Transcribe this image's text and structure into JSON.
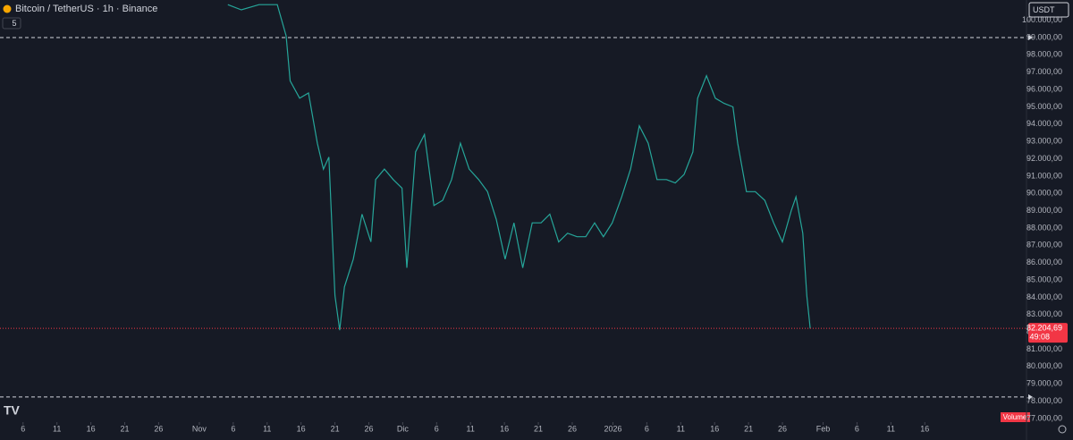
{
  "chart_data": {
    "type": "line",
    "title": "Bitcoin / TetherUS · 1h · Binance",
    "interval_badge": "5",
    "currency": "USDT",
    "volume_label": "Volume",
    "x": [
      35.2,
      37.2,
      39.8,
      42.5,
      43.8,
      44.4,
      45.8,
      47.1,
      48.4,
      49.3,
      50.1,
      51.0,
      51.7,
      52.4,
      53.7,
      55.0,
      56.3,
      57.0,
      58.3,
      59.6,
      60.9,
      61.6,
      62.3,
      62.9,
      64.2,
      65.6,
      66.9,
      68.2,
      69.5,
      70.8,
      72.2,
      73.5,
      74.8,
      76.1,
      77.4,
      78.7,
      80.1,
      81.4,
      82.7,
      84.0,
      85.3,
      86.7,
      88.0,
      89.3,
      90.6,
      91.9,
      93.3,
      94.6,
      95.9,
      97.2,
      98.5,
      99.9,
      101.2,
      102.5,
      103.8,
      104.5,
      105.8,
      107.1,
      108.4,
      109.7,
      110.4,
      111.7,
      113.0,
      114.4,
      115.7,
      117.0,
      118.3,
      119.0,
      120.0,
      120.6,
      121.1
    ],
    "series": [
      {
        "color": "#26a69a",
        "values": [
          100900,
          100600,
          100900,
          100900,
          99100,
          96500,
          95500,
          95800,
          92900,
          91400,
          92100,
          84100,
          82100,
          84600,
          86200,
          88800,
          87200,
          90800,
          91400,
          90800,
          90300,
          85700,
          89300,
          92400,
          93400,
          89300,
          89600,
          90800,
          92900,
          91400,
          90800,
          90100,
          88500,
          86200,
          88300,
          85700,
          88300,
          88300,
          88800,
          87200,
          87700,
          87500,
          87500,
          88300,
          87500,
          88300,
          89800,
          91400,
          93900,
          92900,
          90800,
          90800,
          90600,
          91100,
          92400,
          95500,
          96800,
          95500,
          95200,
          95000,
          92900,
          90100,
          90100,
          89600,
          88300,
          87200,
          89000,
          89800,
          87700,
          84100,
          82200
        ]
      }
    ],
    "xlim": [
      1.6,
      153
    ],
    "xticks": [
      {
        "value": 5,
        "label": "6"
      },
      {
        "value": 10,
        "label": "11"
      },
      {
        "value": 15,
        "label": "16"
      },
      {
        "value": 20,
        "label": "21"
      },
      {
        "value": 25,
        "label": "26"
      },
      {
        "value": 31,
        "label": "Nov"
      },
      {
        "value": 36,
        "label": "6"
      },
      {
        "value": 41,
        "label": "11"
      },
      {
        "value": 46,
        "label": "16"
      },
      {
        "value": 51,
        "label": "21"
      },
      {
        "value": 56,
        "label": "26"
      },
      {
        "value": 61,
        "label": "Dic"
      },
      {
        "value": 66,
        "label": "6"
      },
      {
        "value": 71,
        "label": "11"
      },
      {
        "value": 76,
        "label": "16"
      },
      {
        "value": 81,
        "label": "21"
      },
      {
        "value": 86,
        "label": "26"
      },
      {
        "value": 92,
        "label": "2026"
      },
      {
        "value": 97,
        "label": "6"
      },
      {
        "value": 102,
        "label": "11"
      },
      {
        "value": 107,
        "label": "16"
      },
      {
        "value": 112,
        "label": "21"
      },
      {
        "value": 117,
        "label": "26"
      },
      {
        "value": 123,
        "label": "Feb"
      },
      {
        "value": 128,
        "label": "6"
      },
      {
        "value": 133,
        "label": "11"
      },
      {
        "value": 138,
        "label": "16"
      }
    ],
    "ylim": [
      76790,
      101170
    ],
    "yticks": [
      {
        "value": 77000,
        "label": "77.000,00"
      },
      {
        "value": 78000,
        "label": "78.000,00"
      },
      {
        "value": 79000,
        "label": "79.000,00"
      },
      {
        "value": 80000,
        "label": "80.000,00"
      },
      {
        "value": 81000,
        "label": "81.000,00"
      },
      {
        "value": 82000,
        "label": "82.000,00"
      },
      {
        "value": 83000,
        "label": "83.000,00"
      },
      {
        "value": 84000,
        "label": "84.000,00"
      },
      {
        "value": 85000,
        "label": "85.000,00"
      },
      {
        "value": 86000,
        "label": "86.000,00"
      },
      {
        "value": 87000,
        "label": "87.000,00"
      },
      {
        "value": 88000,
        "label": "88.000,00"
      },
      {
        "value": 89000,
        "label": "89.000,00"
      },
      {
        "value": 90000,
        "label": "90.000,00"
      },
      {
        "value": 91000,
        "label": "91.000,00"
      },
      {
        "value": 92000,
        "label": "92.000,00"
      },
      {
        "value": 93000,
        "label": "93.000,00"
      },
      {
        "value": 94000,
        "label": "94.000,00"
      },
      {
        "value": 95000,
        "label": "95.000,00"
      },
      {
        "value": 96000,
        "label": "96.000,00"
      },
      {
        "value": 97000,
        "label": "97.000,00"
      },
      {
        "value": 98000,
        "label": "98.000,00"
      },
      {
        "value": 99000,
        "label": "99.000,00"
      },
      {
        "value": 100000,
        "label": "100.000,00"
      }
    ],
    "horizontal_lines": [
      99000,
      78240
    ],
    "last_price": {
      "value": 82204.69,
      "label": "82.204,69",
      "color": "#f23645"
    },
    "countdown": "49:08",
    "grid": false
  }
}
